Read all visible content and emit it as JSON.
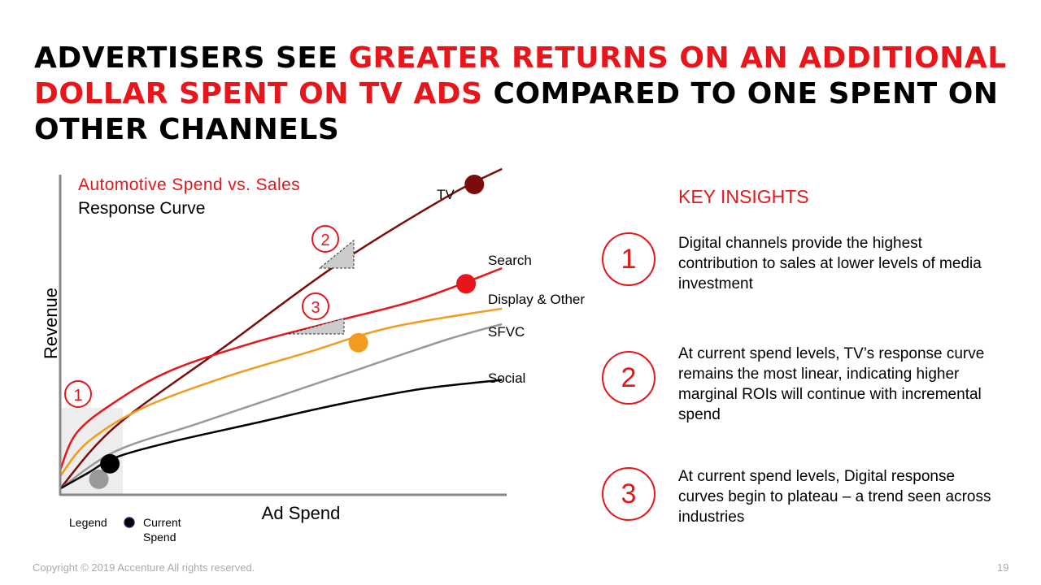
{
  "headline": {
    "part1": "ADVERTISERS SEE ",
    "part2": "GREATER RETURNS ON AN ADDITIONAL DOLLAR SPENT ON TV ADS",
    "part3": " COMPARED TO ONE SPENT ON OTHER CHANNELS"
  },
  "colors": {
    "accent": "#e8151b",
    "tv": "#7a0c0c",
    "search": "#e8151b",
    "display": "#f39b1f",
    "sfvc": "#999999",
    "social": "#000000"
  },
  "chart_data": {
    "type": "line",
    "title": "Automotive Spend vs. Sales",
    "subtitle": "Response Curve",
    "xlabel": "Ad Spend",
    "ylabel": "Revenue",
    "axis_ticks": false,
    "grid": false,
    "legend": {
      "label": "Legend",
      "item": "Current Spend",
      "placement": "bottom-left"
    },
    "series": [
      {
        "name": "TV",
        "color_key": "tv",
        "x": [
          0,
          0.1,
          0.3,
          0.5,
          0.7,
          0.8
        ],
        "y": [
          0.02,
          0.22,
          0.48,
          0.74,
          0.96,
          1.05
        ],
        "current_spend": [
          0.75,
          1.0
        ]
      },
      {
        "name": "Search",
        "color_key": "search",
        "x": [
          0,
          0.03,
          0.1,
          0.2,
          0.35,
          0.5,
          0.65,
          0.8
        ],
        "y": [
          0.08,
          0.2,
          0.3,
          0.4,
          0.49,
          0.56,
          0.63,
          0.73
        ],
        "current_spend": [
          0.735,
          0.68
        ]
      },
      {
        "name": "Display & Other",
        "color_key": "display",
        "x": [
          0,
          0.05,
          0.15,
          0.3,
          0.45,
          0.6,
          0.8
        ],
        "y": [
          0.06,
          0.17,
          0.28,
          0.38,
          0.46,
          0.54,
          0.6
        ],
        "current_spend": [
          0.54,
          0.49
        ]
      },
      {
        "name": "SFVC",
        "color_key": "sfvc",
        "x": [
          0,
          0.1,
          0.25,
          0.4,
          0.55,
          0.7,
          0.8
        ],
        "y": [
          0.02,
          0.14,
          0.23,
          0.32,
          0.41,
          0.5,
          0.55
        ],
        "current_spend": [
          0.07,
          0.05
        ]
      },
      {
        "name": "Social",
        "color_key": "social",
        "x": [
          0,
          0.05,
          0.1,
          0.2,
          0.35,
          0.5,
          0.65,
          0.8
        ],
        "y": [
          0.02,
          0.07,
          0.12,
          0.17,
          0.23,
          0.29,
          0.34,
          0.37
        ],
        "current_spend": [
          0.09,
          0.1
        ]
      }
    ],
    "markers": [
      {
        "num": "1"
      },
      {
        "num": "2"
      },
      {
        "num": "3"
      }
    ]
  },
  "insights": {
    "title": "KEY INSIGHTS",
    "items": [
      {
        "num": "1",
        "text": "Digital channels provide the highest contribution to sales at lower levels of media investment"
      },
      {
        "num": "2",
        "text": "At current spend levels, TV’s response curve remains the most linear, indicating higher marginal ROIs will continue with incremental spend"
      },
      {
        "num": "3",
        "text": "At current spend levels, Digital response curves begin to plateau – a trend seen across industries"
      }
    ]
  },
  "footer": {
    "copyright": "Copyright © 2019 Accenture All rights reserved.",
    "page": "19"
  }
}
